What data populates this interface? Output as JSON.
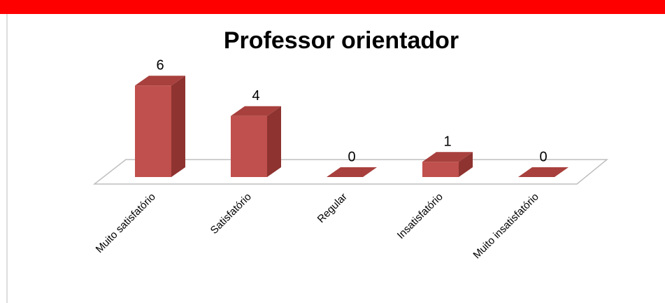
{
  "chart_data": {
    "type": "bar3d",
    "title": "Professor orientador",
    "categories": [
      "Muito satisfatório",
      "Satisfatório",
      "Regular",
      "Insatisfatório",
      "Muito insatisfatório"
    ],
    "values": [
      6,
      4,
      0,
      1,
      0
    ],
    "color": "#c0504d"
  }
}
